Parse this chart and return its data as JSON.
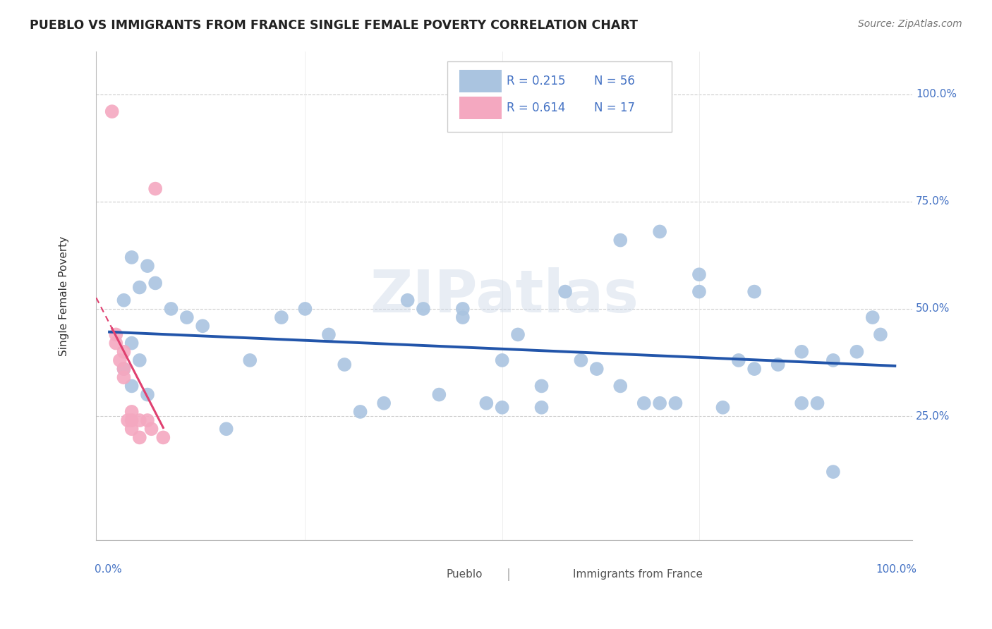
{
  "title": "PUEBLO VS IMMIGRANTS FROM FRANCE SINGLE FEMALE POVERTY CORRELATION CHART",
  "source": "Source: ZipAtlas.com",
  "ylabel": "Single Female Poverty",
  "y_tick_labels": [
    "25.0%",
    "50.0%",
    "75.0%",
    "100.0%"
  ],
  "y_tick_values": [
    0.25,
    0.5,
    0.75,
    1.0
  ],
  "x_tick_left": "0.0%",
  "x_tick_right": "100.0%",
  "legend_r1": "R = 0.215",
  "legend_n1": "N = 56",
  "legend_r2": "R = 0.614",
  "legend_n2": "N = 17",
  "pueblo_color": "#aac4e0",
  "france_color": "#f4a8c0",
  "trendline_pueblo_color": "#2255aa",
  "trendline_france_color": "#e04070",
  "watermark": "ZIPatlas",
  "pueblo_x": [
    0.03,
    0.05,
    0.04,
    0.02,
    0.03,
    0.04,
    0.02,
    0.03,
    0.05,
    0.06,
    0.08,
    0.1,
    0.12,
    0.15,
    0.18,
    0.22,
    0.25,
    0.28,
    0.3,
    0.32,
    0.35,
    0.38,
    0.4,
    0.42,
    0.45,
    0.5,
    0.52,
    0.55,
    0.58,
    0.6,
    0.62,
    0.65,
    0.68,
    0.7,
    0.72,
    0.75,
    0.78,
    0.8,
    0.82,
    0.85,
    0.88,
    0.9,
    0.92,
    0.95,
    0.97,
    0.98,
    0.65,
    0.7,
    0.75,
    0.82,
    0.88,
    0.92,
    0.45,
    0.48,
    0.5,
    0.55
  ],
  "pueblo_y": [
    0.62,
    0.6,
    0.55,
    0.52,
    0.42,
    0.38,
    0.36,
    0.32,
    0.3,
    0.56,
    0.5,
    0.48,
    0.46,
    0.22,
    0.38,
    0.48,
    0.5,
    0.44,
    0.37,
    0.26,
    0.28,
    0.52,
    0.5,
    0.3,
    0.48,
    0.38,
    0.44,
    0.32,
    0.54,
    0.38,
    0.36,
    0.32,
    0.28,
    0.28,
    0.28,
    0.58,
    0.27,
    0.38,
    0.36,
    0.37,
    0.28,
    0.28,
    0.38,
    0.4,
    0.48,
    0.44,
    0.66,
    0.68,
    0.54,
    0.54,
    0.4,
    0.12,
    0.5,
    0.28,
    0.27,
    0.27
  ],
  "france_x": [
    0.005,
    0.01,
    0.01,
    0.015,
    0.02,
    0.02,
    0.02,
    0.025,
    0.03,
    0.03,
    0.03,
    0.04,
    0.04,
    0.05,
    0.055,
    0.06,
    0.07
  ],
  "france_y": [
    0.96,
    0.44,
    0.42,
    0.38,
    0.4,
    0.36,
    0.34,
    0.24,
    0.26,
    0.24,
    0.22,
    0.24,
    0.2,
    0.24,
    0.22,
    0.78,
    0.2
  ],
  "xlim": [
    -0.015,
    1.02
  ],
  "ylim": [
    -0.04,
    1.1
  ]
}
